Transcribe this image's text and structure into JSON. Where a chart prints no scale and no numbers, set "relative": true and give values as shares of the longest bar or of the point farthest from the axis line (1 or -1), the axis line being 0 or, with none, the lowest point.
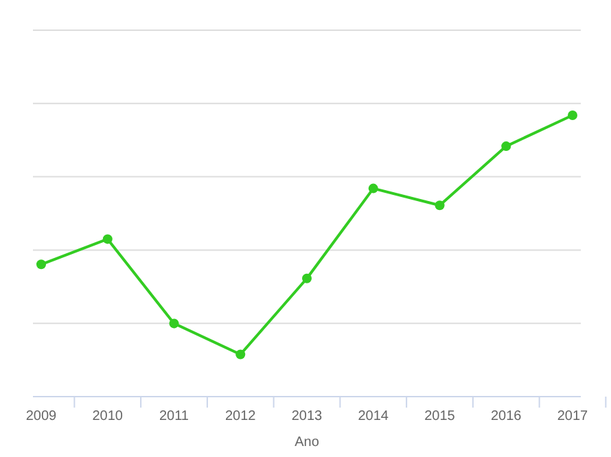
{
  "chart_data": {
    "type": "line",
    "xlabel": "Ano",
    "relative": true,
    "categories": [
      "2009",
      "2010",
      "2011",
      "2012",
      "2013",
      "2014",
      "2015",
      "2016",
      "2017"
    ],
    "series": [
      {
        "color": "#33cc22",
        "values": [
          0.47,
          0.56,
          0.26,
          0.15,
          0.42,
          0.74,
          0.68,
          0.89,
          1
        ]
      }
    ],
    "grid": "y",
    "marker": "circle",
    "line_style": "solid"
  }
}
